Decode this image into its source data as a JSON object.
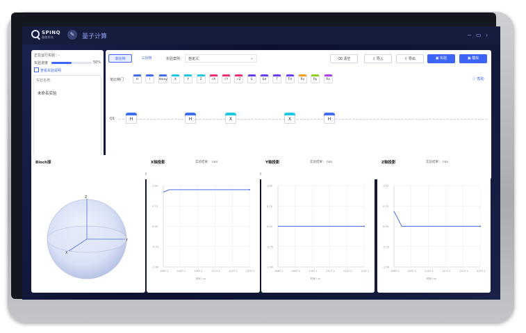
{
  "app": {
    "logo_text": "SPINQ",
    "logo_sub": "量旋科技",
    "title": "量子计算",
    "window_controls": [
      "−",
      "▭",
      "›"
    ]
  },
  "left_info": {
    "queue_label": "正在运行实验：",
    "queue_value": "-",
    "progress_label": "实验进度",
    "progress_pct": "50%",
    "progress_value": 0.5,
    "view_desc": "查看实验说明",
    "name_label": "实验名称：",
    "name_value": "未命名实验",
    "char_count": "5/20"
  },
  "toolbar": {
    "tabs": [
      "单比特",
      "三比特"
    ],
    "preset_label": "实验案例：",
    "preset_value": "自定义",
    "buttons": {
      "clear": "清空",
      "import": "导入",
      "export": "导出",
      "experiment": "实验",
      "simulate": "模拟"
    },
    "help": "帮助"
  },
  "gate_palette": {
    "label": "单比特门",
    "gates": [
      {
        "label": "H",
        "color": "#3f6ee8"
      },
      {
        "label": "I",
        "color": "#3f6ee8"
      },
      {
        "label": "delay",
        "color": "#3f6ee8"
      },
      {
        "label": "X",
        "color": "#1fc8e3"
      },
      {
        "label": "Y",
        "color": "#1fc8e3"
      },
      {
        "label": "Z",
        "color": "#1fc8e3"
      },
      {
        "label": "√X",
        "color": "#ef2f72"
      },
      {
        "label": "√Y",
        "color": "#ef2f72"
      },
      {
        "label": "√Z",
        "color": "#ef2f72"
      },
      {
        "label": "S",
        "color": "#6c3df0"
      },
      {
        "label": "Sd",
        "color": "#6c3df0"
      },
      {
        "label": "T",
        "color": "#6c3df0"
      },
      {
        "label": "Td",
        "color": "#6c3df0"
      },
      {
        "label": "Rx",
        "color": "#f6a11e"
      },
      {
        "label": "Ry",
        "color": "#8ed21f"
      },
      {
        "label": "Rz",
        "color": "#b53be5"
      }
    ]
  },
  "circuit": {
    "qubit_label": "Q1",
    "gates": [
      {
        "label": "H",
        "color": "#3f6ee8"
      },
      {
        "label": "H",
        "color": "#3f6ee8"
      },
      {
        "label": "X",
        "color": "#1fc8e3"
      },
      {
        "label": "X",
        "color": "#1fc8e3"
      },
      {
        "label": "H",
        "color": "#3f6ee8"
      }
    ]
  },
  "bloch": {
    "title": "Bloch球",
    "axes": {
      "z": "Z",
      "x": "X",
      "y": "Y"
    }
  },
  "charts_meta": {
    "result_label": "实验结果：",
    "result_value": "nan"
  },
  "chart_data": [
    {
      "type": "line",
      "title": "X轴投影",
      "xlabel": "时间 / us",
      "x_ticks": [
        "1087.1",
        "1097.1",
        "1107.1",
        "1117.1",
        "1127.1",
        "1137.1"
      ],
      "ylim": [
        -1,
        1
      ],
      "y_ticks": [
        "1.00",
        "0.75",
        "0.00",
        "-0.75",
        "-1.00"
      ],
      "series": [
        {
          "values": [
            [
              0,
              0.84
            ],
            [
              0.07,
              0.9
            ],
            [
              1,
              0.9
            ]
          ]
        }
      ]
    },
    {
      "type": "line",
      "title": "Y轴投影",
      "xlabel": "时间 / us",
      "x_ticks": [
        "1087.1",
        "1097.1",
        "1107.1",
        "1117.1",
        "1127.1",
        "1137.1"
      ],
      "ylim": [
        -1,
        1
      ],
      "y_ticks": [
        "1.00",
        "0.75",
        "0.00",
        "-0.75",
        "-1.00"
      ],
      "series": [
        {
          "values": [
            [
              0,
              0.0
            ],
            [
              1,
              0.0
            ]
          ]
        }
      ]
    },
    {
      "type": "line",
      "title": "Z轴投影",
      "xlabel": "时间 / us",
      "x_ticks": [
        "1087.1",
        "1097.1",
        "1107.1",
        "1117.1",
        "1127.1",
        "1137.1"
      ],
      "ylim": [
        -1,
        1
      ],
      "y_ticks": [
        "1.00",
        "0.75",
        "0.00",
        "-0.75",
        "-1.00"
      ],
      "series": [
        {
          "values": [
            [
              0,
              0.37
            ],
            [
              0.09,
              0.0
            ],
            [
              1,
              0.0
            ]
          ]
        }
      ]
    }
  ]
}
